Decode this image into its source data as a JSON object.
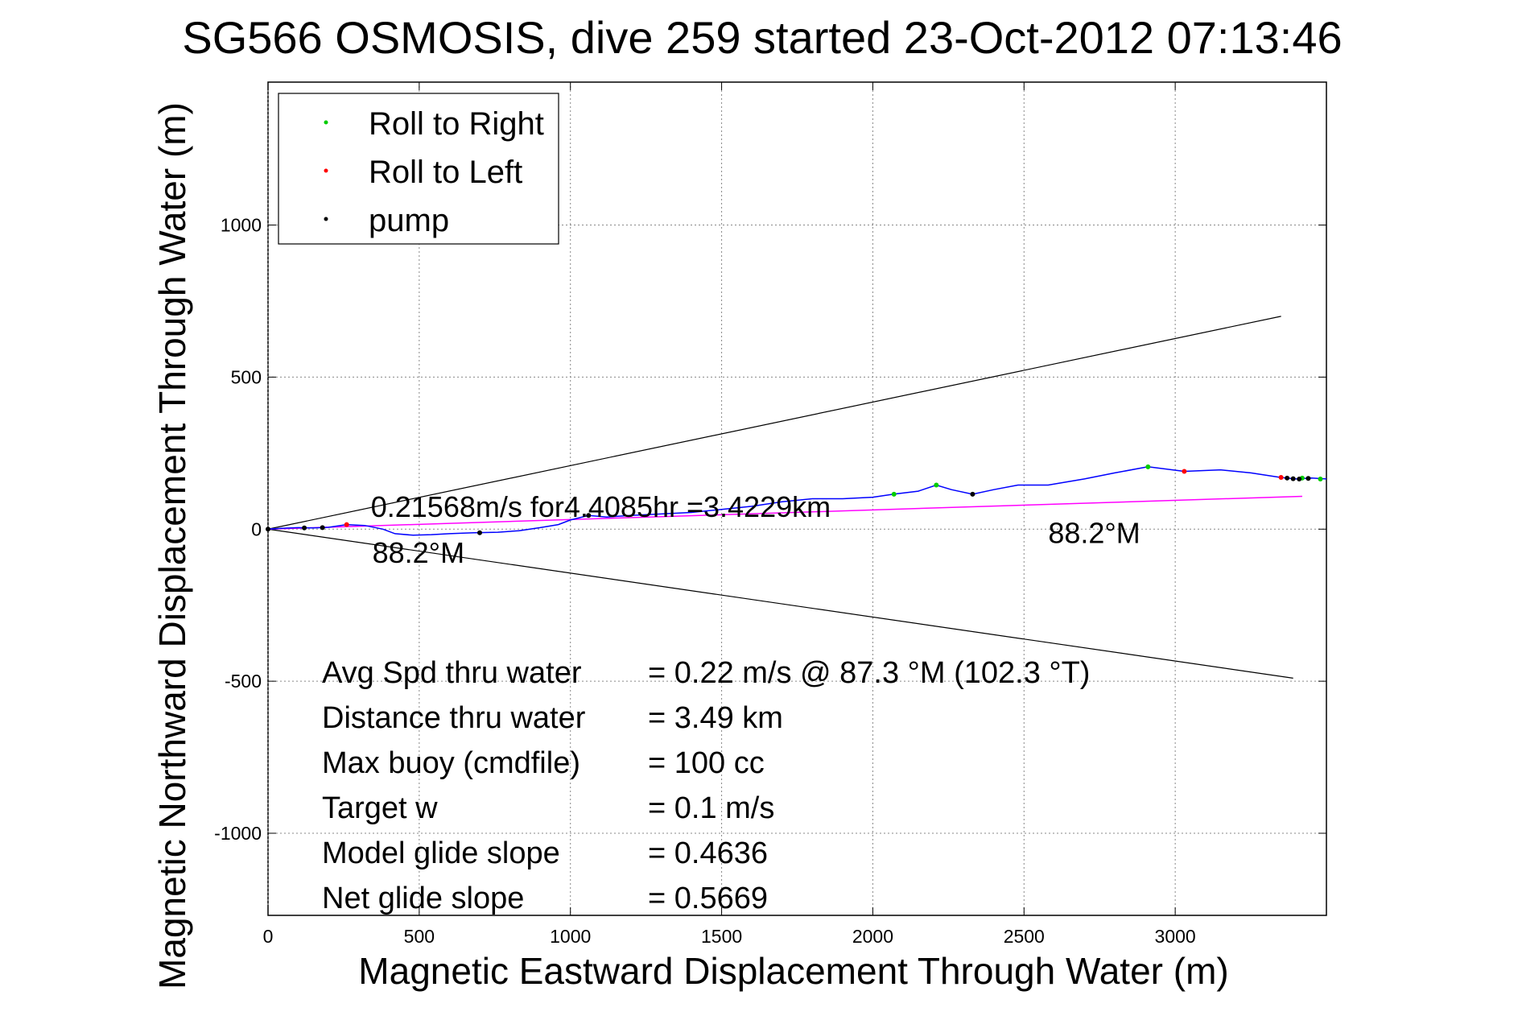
{
  "chart_data": {
    "type": "scatter",
    "title": "SG566 OSMOSIS, dive 259 started 23-Oct-2012 07:13:46",
    "xlabel": "Magnetic Eastward Displacement Through Water (m)",
    "ylabel": "Magnetic Northward Displacement Through Water (m)",
    "xlim": [
      0,
      3500
    ],
    "ylim": [
      -1270,
      1470
    ],
    "xticks": [
      0,
      500,
      1000,
      1500,
      2000,
      2500,
      3000
    ],
    "yticks": [
      -1000,
      -500,
      0,
      500,
      1000
    ],
    "grid": true,
    "legend": {
      "position": "top-left",
      "entries": [
        {
          "label": "Roll to Right",
          "color": "#00cc00"
        },
        {
          "label": "Roll to Left",
          "color": "#ff0000"
        },
        {
          "label": "pump",
          "color": "#000000"
        }
      ]
    },
    "track": {
      "color": "#0000ff",
      "x": [
        0,
        50,
        100,
        150,
        200,
        260,
        320,
        380,
        420,
        480,
        540,
        600,
        680,
        760,
        830,
        900,
        960,
        1000,
        1060,
        1120,
        1200,
        1300,
        1400,
        1500,
        1600,
        1700,
        1800,
        1900,
        2000,
        2070,
        2150,
        2210,
        2260,
        2330,
        2400,
        2480,
        2580,
        2700,
        2800,
        2910,
        3030,
        3150,
        3250,
        3350,
        3400,
        3450,
        3500
      ],
      "y": [
        0,
        3,
        5,
        4,
        6,
        15,
        12,
        0,
        -15,
        -20,
        -18,
        -15,
        -12,
        -10,
        -5,
        5,
        15,
        30,
        45,
        40,
        45,
        50,
        55,
        65,
        75,
        90,
        100,
        100,
        105,
        115,
        125,
        145,
        130,
        115,
        130,
        145,
        145,
        165,
        185,
        205,
        190,
        195,
        185,
        170,
        165,
        168,
        165
      ]
    },
    "rhumb_line": {
      "color": "#ff00ff",
      "x": [
        0,
        3420
      ],
      "y": [
        0,
        108
      ]
    },
    "cone_lines": [
      {
        "x": [
          0,
          3350
        ],
        "y": [
          0,
          700
        ]
      },
      {
        "x": [
          0,
          3390
        ],
        "y": [
          0,
          -490
        ]
      }
    ],
    "markers": {
      "roll_right": {
        "x": [
          2070,
          2210,
          2910,
          3420,
          3480
        ],
        "y": [
          115,
          145,
          205,
          168,
          165
        ]
      },
      "roll_left": {
        "x": [
          260,
          3030,
          3350
        ],
        "y": [
          15,
          190,
          170
        ]
      },
      "pump": {
        "x": [
          0,
          120,
          180,
          700,
          1060,
          2330,
          3370,
          3390,
          3410,
          3440
        ],
        "y": [
          0,
          4,
          5,
          -12,
          45,
          115,
          168,
          166,
          165,
          167
        ]
      }
    },
    "annotations": [
      {
        "text": "0.21568m/s for4.4085hr =3.4229km",
        "x": 340,
        "y": 40
      },
      {
        "text": "88.2°M",
        "x": 345,
        "y": -110
      },
      {
        "text": "88.2°M",
        "x": 2580,
        "y": -45
      }
    ],
    "stats": [
      {
        "label": "Avg Spd thru water",
        "value": "=  0.22 m/s @  87.3 °M (102.3 °T)"
      },
      {
        "label": "Distance thru water",
        "value": "=  3.49 km"
      },
      {
        "label": "Max buoy (cmdfile)",
        "value": "= 100 cc"
      },
      {
        "label": "Target w",
        "value": "= 0.1 m/s"
      },
      {
        "label": "Model glide slope",
        "value": "= 0.4636"
      },
      {
        "label": "Net glide slope",
        "value": "= 0.5669"
      }
    ]
  }
}
